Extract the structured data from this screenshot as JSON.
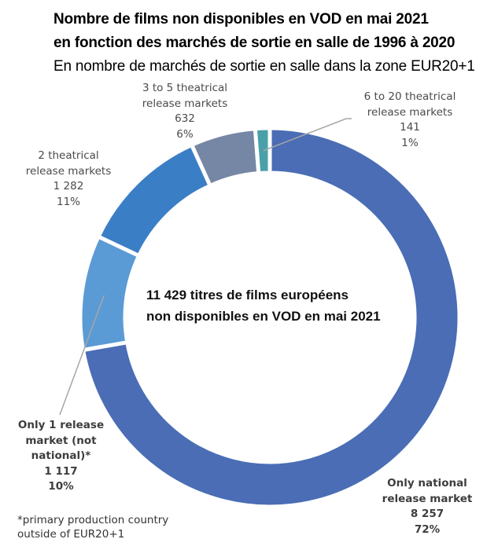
{
  "header": {
    "title_line1": "Nombre de films non disponibles en VOD en mai 2021",
    "title_line2": "en fonction des marchés de sortie en salle de 1996 à 2020",
    "subtitle": "En nombre de marchés de sortie en salle dans la zone EUR20+1"
  },
  "center": {
    "line1": "11 429 titres de films européens",
    "line2": "non disponibles en VOD en mai 2021"
  },
  "footnote": {
    "line1": "*primary production country",
    "line2": "outside of EUR20+1"
  },
  "chart_data": {
    "type": "pie",
    "variant": "donut",
    "title": "Nombre de films non disponibles en VOD en mai 2021 en fonction des marchés de sortie en salle de 1996 à 2020",
    "subtitle": "En nombre de marchés de sortie en salle dans la zone EUR20+1",
    "center_label": "11 429 titres de films européens non disponibles en VOD en mai 2021",
    "total": 11429,
    "start": "top",
    "direction": "clockwise",
    "slices": [
      {
        "label": "Only national release market",
        "label_lines": [
          "Only national",
          "release market"
        ],
        "value": 8257,
        "value_text": "8 257",
        "percent": 72,
        "percent_text": "72%",
        "color": "#4a6db5",
        "bold": true
      },
      {
        "label": "Only 1 release market (not national)*",
        "label_lines": [
          "Only 1 release",
          "market (not",
          "national)*"
        ],
        "value": 1117,
        "value_text": "1 117",
        "percent": 10,
        "percent_text": "10%",
        "color": "#5b9bd5",
        "bold": true
      },
      {
        "label": "2 theatrical release markets",
        "label_lines": [
          "2 theatrical",
          "release markets"
        ],
        "value": 1282,
        "value_text": "1 282",
        "percent": 11,
        "percent_text": "11%",
        "color": "#3a7ec6",
        "bold": false
      },
      {
        "label": "3 to 5 theatrical release markets",
        "label_lines": [
          "3 to 5 theatrical",
          "release markets"
        ],
        "value": 632,
        "value_text": "632",
        "percent": 6,
        "percent_text": "6%",
        "color": "#7587a5",
        "bold": false
      },
      {
        "label": "6 to 20 theatrical release markets",
        "label_lines": [
          "6 to 20 theatrical",
          "release markets"
        ],
        "value": 141,
        "value_text": "141",
        "percent": 1,
        "percent_text": "1%",
        "color": "#4aa0a8",
        "bold": false
      }
    ],
    "footnote": "*primary production country outside of EUR20+1"
  }
}
